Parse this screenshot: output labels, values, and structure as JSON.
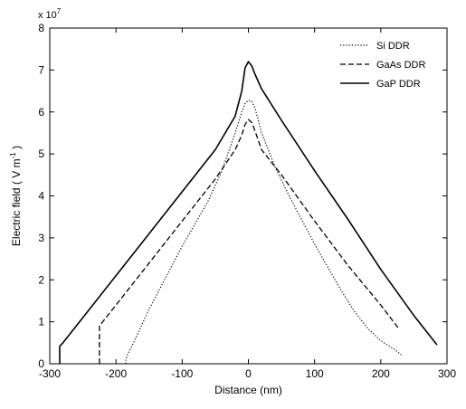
{
  "chart_data": {
    "type": "line",
    "xlabel": "Distance (nm)",
    "ylabel_main": "Electric field ( V m",
    "ylabel_sup": "-1",
    "ylabel_end": " )",
    "exponent_base": "x 10",
    "exponent_power": "7",
    "xlim": [
      -300,
      300
    ],
    "ylim": [
      0,
      8
    ],
    "xticks": [
      -300,
      -200,
      -100,
      0,
      100,
      200,
      300
    ],
    "yticks": [
      0,
      1,
      2,
      3,
      4,
      5,
      6,
      7,
      8
    ],
    "legend_position": "top-right",
    "series": [
      {
        "name": "Si DDR",
        "style": "dotted",
        "x": [
          -185,
          -185,
          -183,
          -175,
          -150,
          -120,
          -100,
          -80,
          -60,
          -40,
          -20,
          -10,
          -5,
          0,
          5,
          10,
          20,
          40,
          60,
          80,
          100,
          120,
          140,
          160,
          180,
          200,
          220,
          232
        ],
        "y": [
          0,
          0.1,
          0.2,
          0.45,
          1.3,
          2.2,
          2.8,
          3.35,
          3.9,
          4.6,
          5.5,
          6.0,
          6.2,
          6.28,
          6.25,
          6.1,
          5.5,
          4.7,
          4.05,
          3.45,
          2.85,
          2.3,
          1.75,
          1.25,
          0.85,
          0.55,
          0.35,
          0.2
        ]
      },
      {
        "name": "GaAs DDR",
        "style": "dashed",
        "x": [
          -225,
          -225,
          -220,
          -200,
          -150,
          -100,
          -50,
          -20,
          -10,
          -5,
          0,
          5,
          10,
          20,
          50,
          100,
          150,
          200,
          228
        ],
        "y": [
          0,
          0.9,
          1.0,
          1.4,
          2.4,
          3.4,
          4.4,
          5.1,
          5.45,
          5.7,
          5.82,
          5.75,
          5.55,
          5.1,
          4.5,
          3.4,
          2.35,
          1.4,
          0.82
        ]
      },
      {
        "name": "GaP DDR",
        "style": "solid",
        "x": [
          -285,
          -285,
          -280,
          -250,
          -200,
          -150,
          -100,
          -50,
          -20,
          -10,
          -5,
          0,
          5,
          10,
          20,
          50,
          100,
          150,
          200,
          250,
          285
        ],
        "y": [
          0,
          0.42,
          0.5,
          1.1,
          2.1,
          3.1,
          4.1,
          5.1,
          5.9,
          6.5,
          7.05,
          7.2,
          7.1,
          6.9,
          6.55,
          5.8,
          4.6,
          3.45,
          2.25,
          1.15,
          0.45
        ]
      }
    ]
  }
}
